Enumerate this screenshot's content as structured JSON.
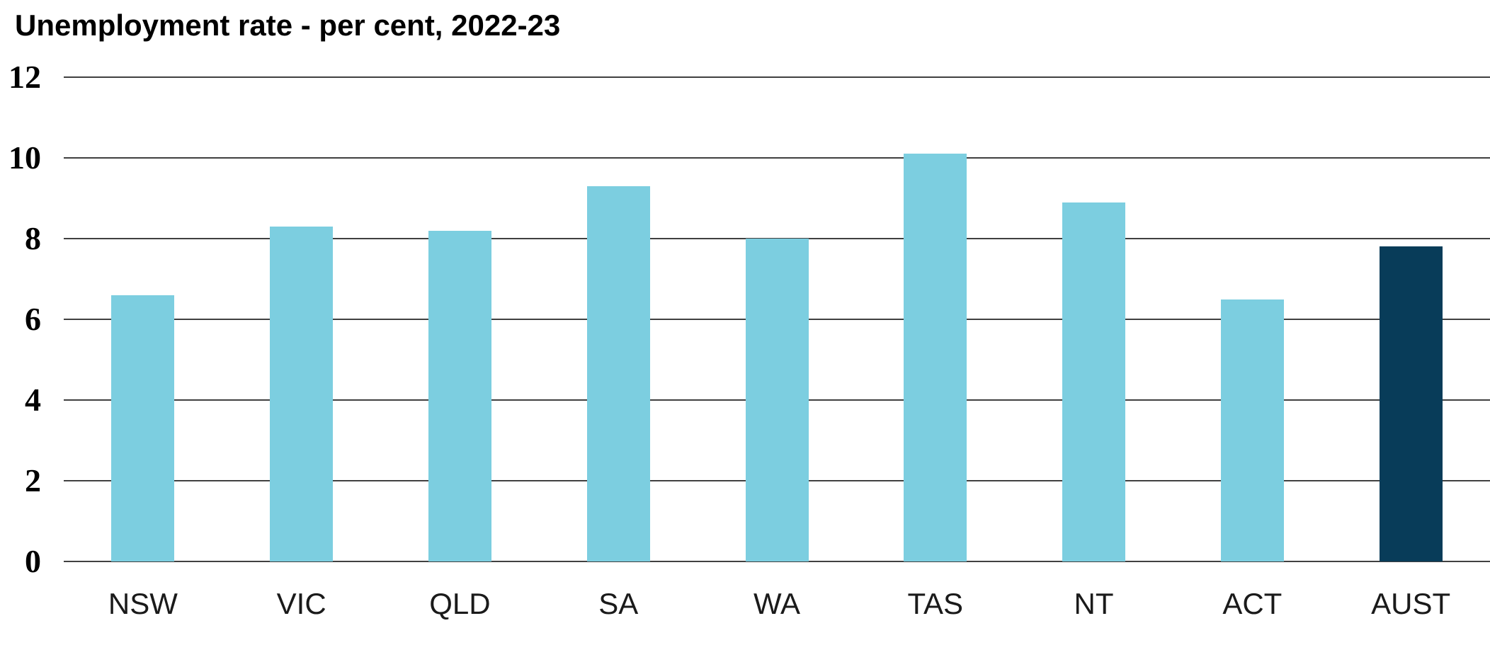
{
  "colors": {
    "bar": "#7CCEE0",
    "highlight_bar": "#083C59",
    "gridline": "#404040",
    "title_text": "#000000",
    "axis_text": "#1a1a1a",
    "background": "#ffffff"
  },
  "chart_data": {
    "type": "bar",
    "title": "Unemployment rate - per cent, 2022-23",
    "categories": [
      "NSW",
      "VIC",
      "QLD",
      "SA",
      "WA",
      "TAS",
      "NT",
      "ACT",
      "AUST"
    ],
    "values": [
      6.6,
      8.3,
      8.2,
      9.3,
      8.0,
      10.1,
      8.9,
      6.5,
      7.8
    ],
    "highlight_category": "AUST",
    "xlabel": "",
    "ylabel": "",
    "ylim": [
      0,
      12
    ],
    "yticks": [
      0,
      2,
      4,
      6,
      8,
      10,
      12
    ],
    "grid": true,
    "legend": false,
    "legend_position": "none"
  }
}
